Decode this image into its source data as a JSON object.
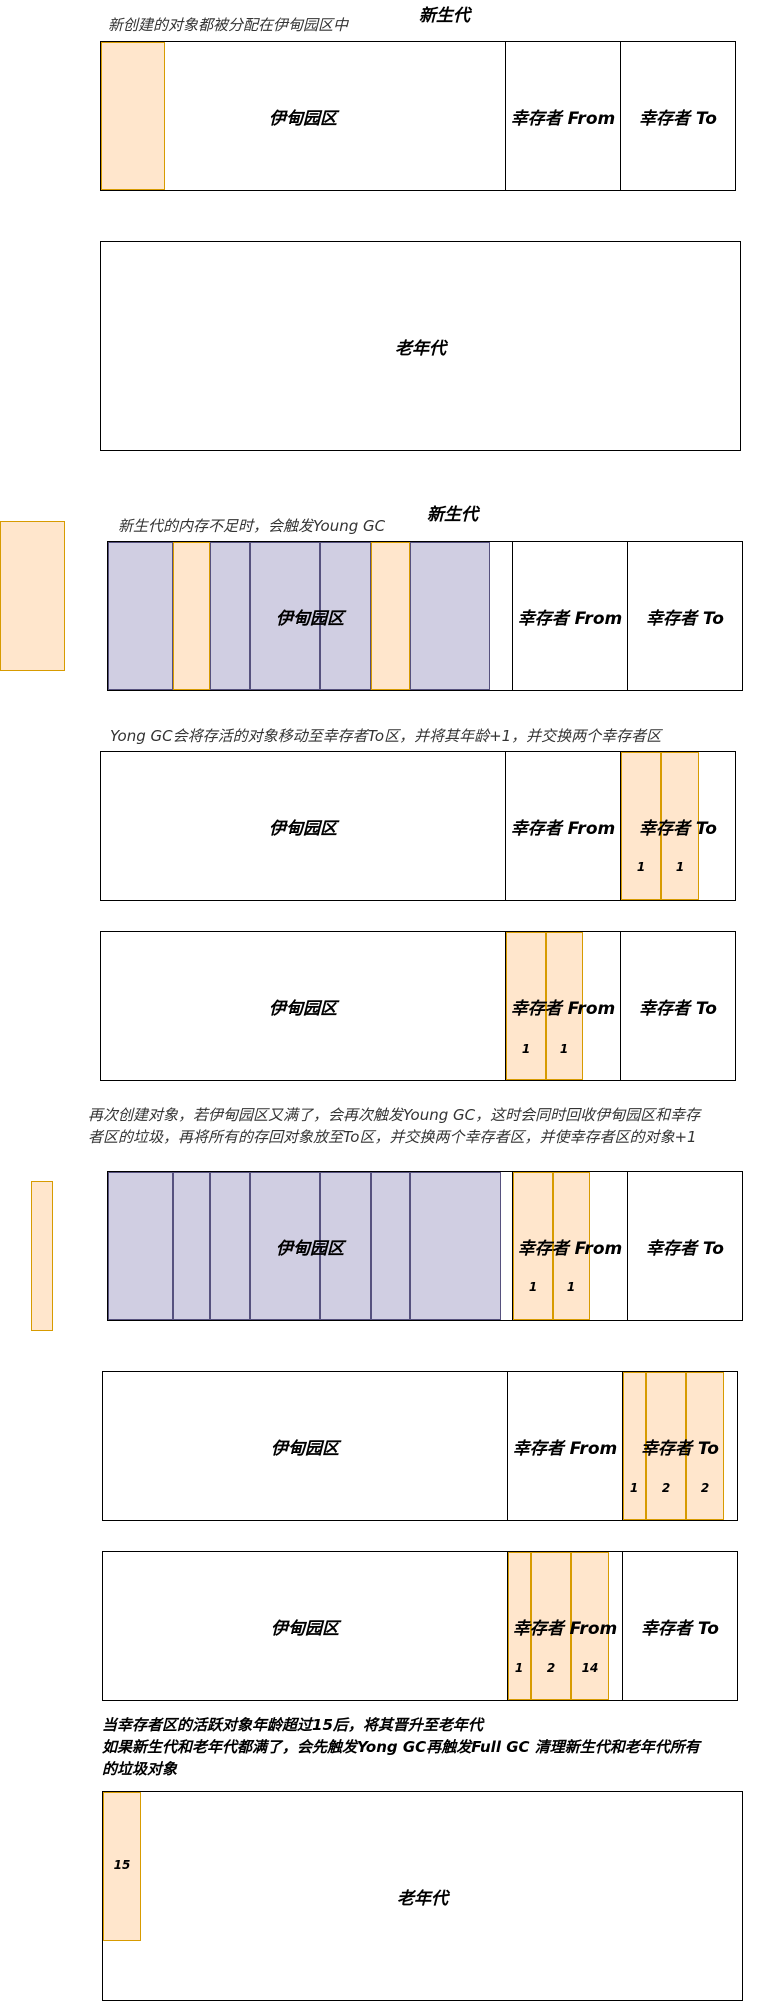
{
  "labels": {
    "young_gen": "新生代",
    "eden": "伊甸园区",
    "survivor_from": "幸存者 From",
    "survivor_to": "幸存者 To",
    "old_gen": "老年代"
  },
  "notes": {
    "s1": "新创建的对象都被分配在伊甸园区中",
    "s2": "新生代的内存不足时，会触发Young GC",
    "s3": "Yong GC会将存活的对象移动至幸存者To区，并将其年龄+1，并交换两个幸存者区",
    "s4_line1": "再次创建对象，若伊甸园区又满了，会再次触发Young GC，这时会同时回收伊甸园区和幸存",
    "s4_line2": "者区的垃圾，再将所有的存回对象放至To区，并交换两个幸存者区，并使幸存者区的对象+1",
    "s5_line1": "当幸存者区的活跃对象年龄超过15后，将其晋升至老年代",
    "s5_line2": "如果新生代和老年代都满了，会先触发Yong GC再触发Full GC 清理新生代和老年代所有",
    "s5_line3": "的垃圾对象"
  },
  "ages": {
    "one": "1",
    "two": "2",
    "fourteen": "14",
    "fifteen": "15"
  },
  "colors": {
    "live_object_fill": "#ffe6cc",
    "live_object_border": "#d79b00",
    "garbage_fill": "#d0cee2",
    "garbage_border": "#56517e"
  }
}
